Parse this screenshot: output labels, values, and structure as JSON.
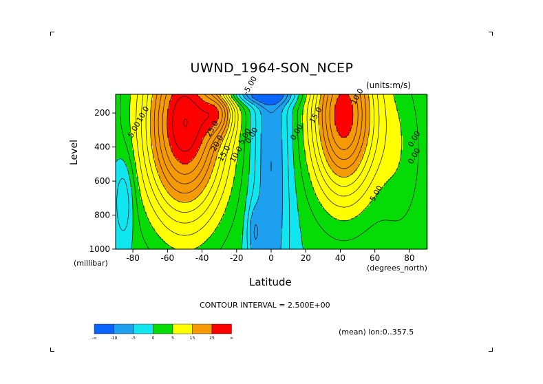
{
  "chart_data": {
    "type": "contour",
    "title": "UWND_1964-SON_NCEP",
    "units": "(units:m/s)",
    "xlabel": "Latitude",
    "x_unit": "(degrees_north)",
    "ylabel": "Level",
    "y_unit": "(millibar)",
    "xlim": [
      -90,
      90
    ],
    "ylim": [
      1000,
      10
    ],
    "x_ticks": [
      -80,
      -60,
      -40,
      -20,
      0,
      20,
      40,
      60,
      80
    ],
    "x_tick_labels": [
      "-80",
      "-60",
      "-40",
      "-20",
      "0",
      "20",
      "40",
      "60",
      "80"
    ],
    "y_ticks": [
      200,
      400,
      600,
      800,
      1000
    ],
    "y_tick_labels": [
      "200",
      "400",
      "600",
      "800",
      "1000"
    ],
    "contour_interval_text": "CONTOUR INTERVAL = 2.500E+00",
    "contour_labels": [
      {
        "text": "10.0",
        "lat": -73,
        "level": 215
      },
      {
        "text": "5.00",
        "lat": -78,
        "level": 305
      },
      {
        "text": "25.0",
        "lat": -33,
        "level": 300
      },
      {
        "text": "20.0",
        "lat": -30,
        "level": 385
      },
      {
        "text": "15.0",
        "lat": -26,
        "level": 445
      },
      {
        "text": "10.0",
        "lat": -19,
        "level": 450
      },
      {
        "text": "5.00",
        "lat": -14,
        "level": 345
      },
      {
        "text": "0.00",
        "lat": -10,
        "level": 340
      },
      {
        "text": "0.00",
        "lat": 16,
        "level": 320
      },
      {
        "text": "15.0",
        "lat": 27,
        "level": 220
      },
      {
        "text": "10.0",
        "lat": 51,
        "level": 110
      },
      {
        "text": "5.00",
        "lat": 62,
        "level": 680
      },
      {
        "text": "0.00",
        "lat": 84,
        "level": 460
      },
      {
        "text": "0.00",
        "lat": 84,
        "level": 360
      },
      {
        "text": "-5.00",
        "lat": -11,
        "level": 45
      }
    ],
    "colorbar": {
      "colors": [
        "#0a64ff",
        "#1ea0f0",
        "#0fe6f0",
        "#05dc05",
        "#ffff00",
        "#f59a05",
        "#ff0000"
      ],
      "labels": [
        "-∞",
        "-10",
        "-5",
        "0",
        "5",
        "15",
        "25",
        "∞"
      ]
    },
    "mean_text": "(mean) lon:0..357.5"
  }
}
